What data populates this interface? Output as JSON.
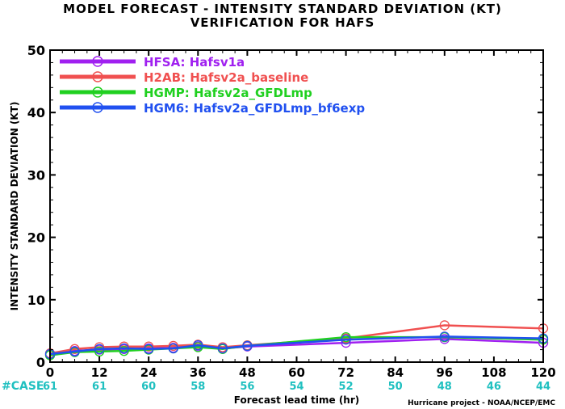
{
  "chart_data": {
    "type": "line",
    "title": "MODEL FORECAST - INTENSITY STANDARD DEVIATION (KT)",
    "subtitle": "VERIFICATION FOR HAFS",
    "xlabel": "Forecast lead time (hr)",
    "ylabel": "INTENSITY STANDARD DEVIATION (KT)",
    "xlim": [
      0,
      120
    ],
    "ylim": [
      0,
      50
    ],
    "xticks": [
      0,
      12,
      24,
      36,
      48,
      60,
      72,
      84,
      96,
      108,
      120
    ],
    "yticks": [
      0,
      10,
      20,
      30,
      40,
      50
    ],
    "legend_position": "top-left",
    "grid": false,
    "case_label": "#CASE",
    "cases": [
      {
        "x": 0,
        "n": "61"
      },
      {
        "x": 12,
        "n": "61"
      },
      {
        "x": 24,
        "n": "60"
      },
      {
        "x": 36,
        "n": "58"
      },
      {
        "x": 48,
        "n": "56"
      },
      {
        "x": 60,
        "n": "54"
      },
      {
        "x": 72,
        "n": "52"
      },
      {
        "x": 84,
        "n": "50"
      },
      {
        "x": 96,
        "n": "48"
      },
      {
        "x": 108,
        "n": "46"
      },
      {
        "x": 120,
        "n": "44"
      }
    ],
    "credit": "Hurricane project - NOAA/NCEP/EMC",
    "series": [
      {
        "name": "HFSA:  Hafsv1a",
        "color": "#a020f0",
        "x": [
          0,
          6,
          12,
          18,
          24,
          30,
          36,
          42,
          48,
          72,
          96,
          120
        ],
        "y": [
          1.2,
          1.8,
          2.0,
          2.1,
          2.2,
          2.3,
          2.5,
          2.2,
          2.5,
          3.1,
          3.7,
          3.1
        ]
      },
      {
        "name": "H2AB:  Hafsv2a_baseline",
        "color": "#f05050",
        "x": [
          0,
          6,
          12,
          18,
          24,
          30,
          36,
          42,
          48,
          72,
          96,
          120
        ],
        "y": [
          1.4,
          2.1,
          2.4,
          2.5,
          2.5,
          2.6,
          2.8,
          2.4,
          2.7,
          3.8,
          5.9,
          5.4
        ]
      },
      {
        "name": "HGMP:  Hafsv2a_GFDLmp",
        "color": "#20d020",
        "x": [
          0,
          6,
          12,
          18,
          24,
          30,
          36,
          42,
          48,
          72,
          96,
          120
        ],
        "y": [
          1.1,
          1.6,
          1.7,
          1.8,
          2.0,
          2.2,
          2.4,
          2.1,
          2.6,
          4.0,
          4.0,
          3.6
        ]
      },
      {
        "name": "HGM6:  Hafsv2a_GFDLmp_bf6exp",
        "color": "#2050f0",
        "x": [
          0,
          6,
          12,
          18,
          24,
          30,
          36,
          42,
          48,
          72,
          96,
          120
        ],
        "y": [
          1.3,
          1.7,
          2.1,
          2.2,
          2.1,
          2.2,
          2.7,
          2.2,
          2.6,
          3.6,
          4.1,
          3.8
        ]
      }
    ]
  }
}
